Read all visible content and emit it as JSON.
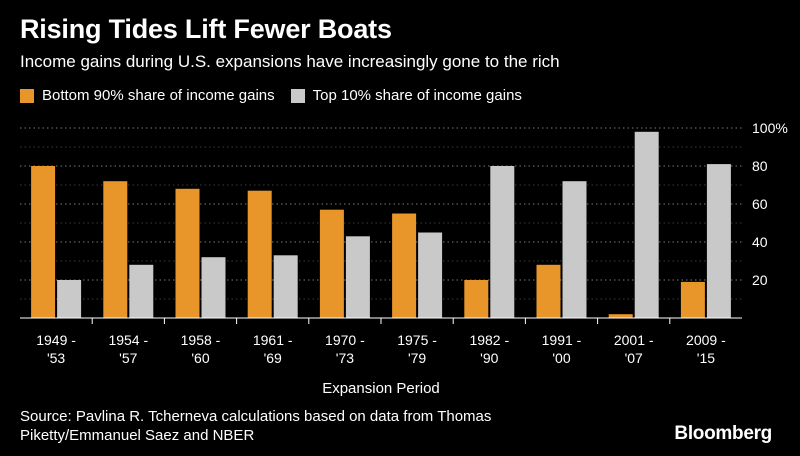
{
  "header": {
    "title": "Rising Tides Lift Fewer Boats",
    "subtitle": "Income gains during U.S. expansions have increasingly gone to the rich"
  },
  "legend": {
    "items": [
      {
        "label": "Bottom 90% share of income gains",
        "color": "#E8952A"
      },
      {
        "label": "Top 10% share of income gains",
        "color": "#C9C9C9"
      }
    ]
  },
  "chart_data": {
    "type": "bar",
    "categories": [
      [
        "1949 -",
        "'53"
      ],
      [
        "1954 -",
        "'57"
      ],
      [
        "1958 -",
        "'60"
      ],
      [
        "1961 -",
        "'69"
      ],
      [
        "1970 -",
        "'73"
      ],
      [
        "1975 -",
        "'79"
      ],
      [
        "1982 -",
        "'90"
      ],
      [
        "1991 -",
        "'00"
      ],
      [
        "2001 -",
        "'07"
      ],
      [
        "2009 -",
        "'15"
      ]
    ],
    "series": [
      {
        "name": "Bottom 90% share of income gains",
        "color": "#E8952A",
        "values": [
          80,
          72,
          68,
          67,
          57,
          55,
          20,
          28,
          2,
          19
        ]
      },
      {
        "name": "Top 10% share of income gains",
        "color": "#C9C9C9",
        "values": [
          20,
          28,
          32,
          33,
          43,
          45,
          80,
          72,
          98,
          81
        ]
      }
    ],
    "xlabel": "Expansion Period",
    "ylabel": "",
    "ylim": [
      0,
      100
    ],
    "yticks": [
      20,
      40,
      60,
      80,
      100
    ],
    "ytick_labels": [
      "20",
      "40",
      "60",
      "80",
      "100%"
    ],
    "grid": true,
    "legend_position": "top-left"
  },
  "footer": {
    "source": "Source: Pavlina R. Tcherneva calculations based on data from Thomas Piketty/Emmanuel Saez and NBER",
    "brand": "Bloomberg"
  }
}
